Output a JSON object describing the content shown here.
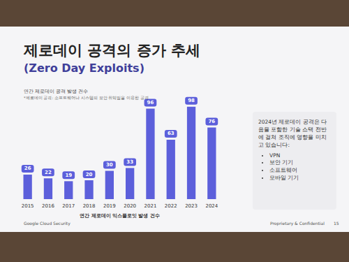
{
  "chart_data": {
    "type": "bar",
    "title": "제로데이 공격의 증가 추세",
    "subtitle": "(Zero Day Exploits)",
    "notes": [
      "연간 제로데이 공격 발생 건수",
      "*제로데이 공격: 소프트웨어나 시스템의 보안 취약점을 이용한 공격"
    ],
    "x_label": "연간 제로데이 익스플로잇 발생 건수",
    "categories": [
      "2015",
      "2016",
      "2017",
      "2018",
      "2019",
      "2020",
      "2021",
      "2022",
      "2023",
      "2024"
    ],
    "values": [
      26,
      22,
      19,
      20,
      30,
      33,
      96,
      63,
      98,
      76
    ],
    "color": "#5c5fdb",
    "ylim": [
      0,
      100
    ],
    "yticks": [
      0,
      100
    ],
    "grid": false,
    "data_labels": true,
    "tick_labels": "x",
    "side_box": {
      "text": "2024년 제로데이 공격은 다음을 포함한 기술 스택 전반에 걸쳐 조직에 영향을 미치고 있습니다:",
      "items": [
        "VPN",
        "보안 기기",
        "소프트웨어",
        "모바일 기기"
      ]
    },
    "footer": {
      "left": "Google Cloud Security",
      "right": "Proprietary & Confidential",
      "page": "15"
    }
  }
}
